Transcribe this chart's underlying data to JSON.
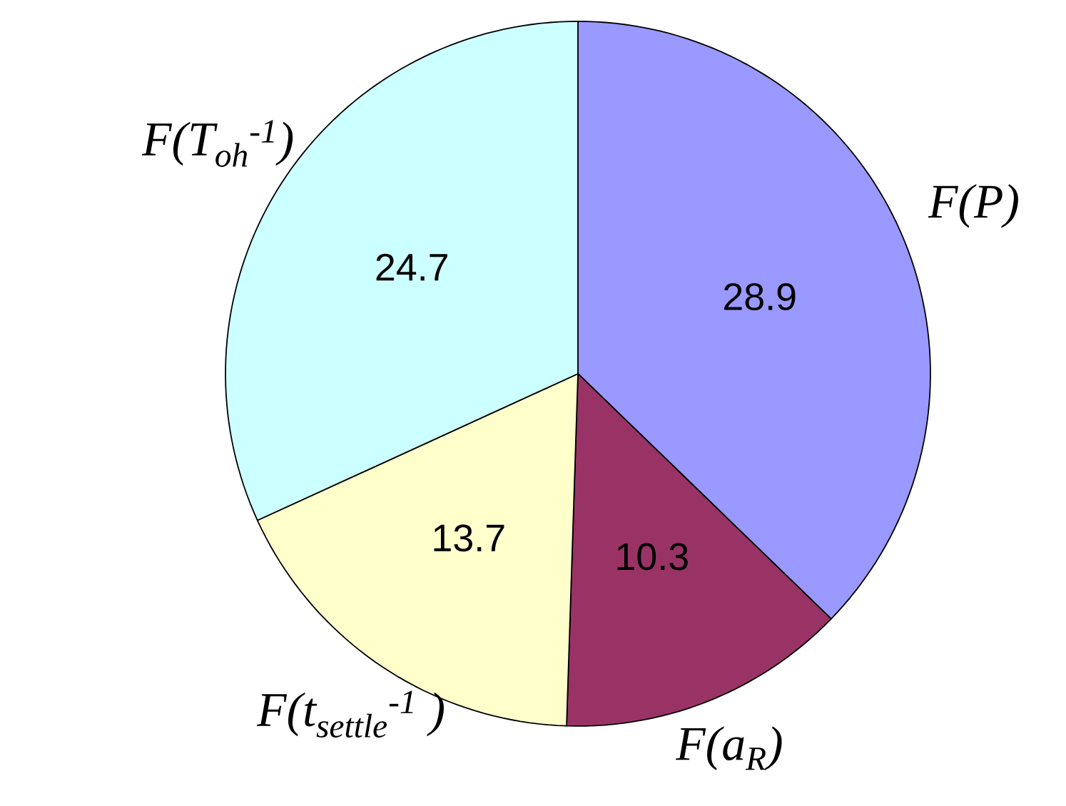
{
  "chart_data": {
    "type": "pie",
    "categories": [
      "F(P)",
      "F(a$_{R}$)",
      "F(t$_{settle}$$^{-1}$ )",
      "F(T$_{oh}$$^{-1}$)"
    ],
    "values": [
      28.9,
      10.3,
      13.7,
      24.7
    ],
    "colors": [
      "#9999ff",
      "#993366",
      "#ffffcc",
      "#ccffff"
    ],
    "data_labels": true
  }
}
